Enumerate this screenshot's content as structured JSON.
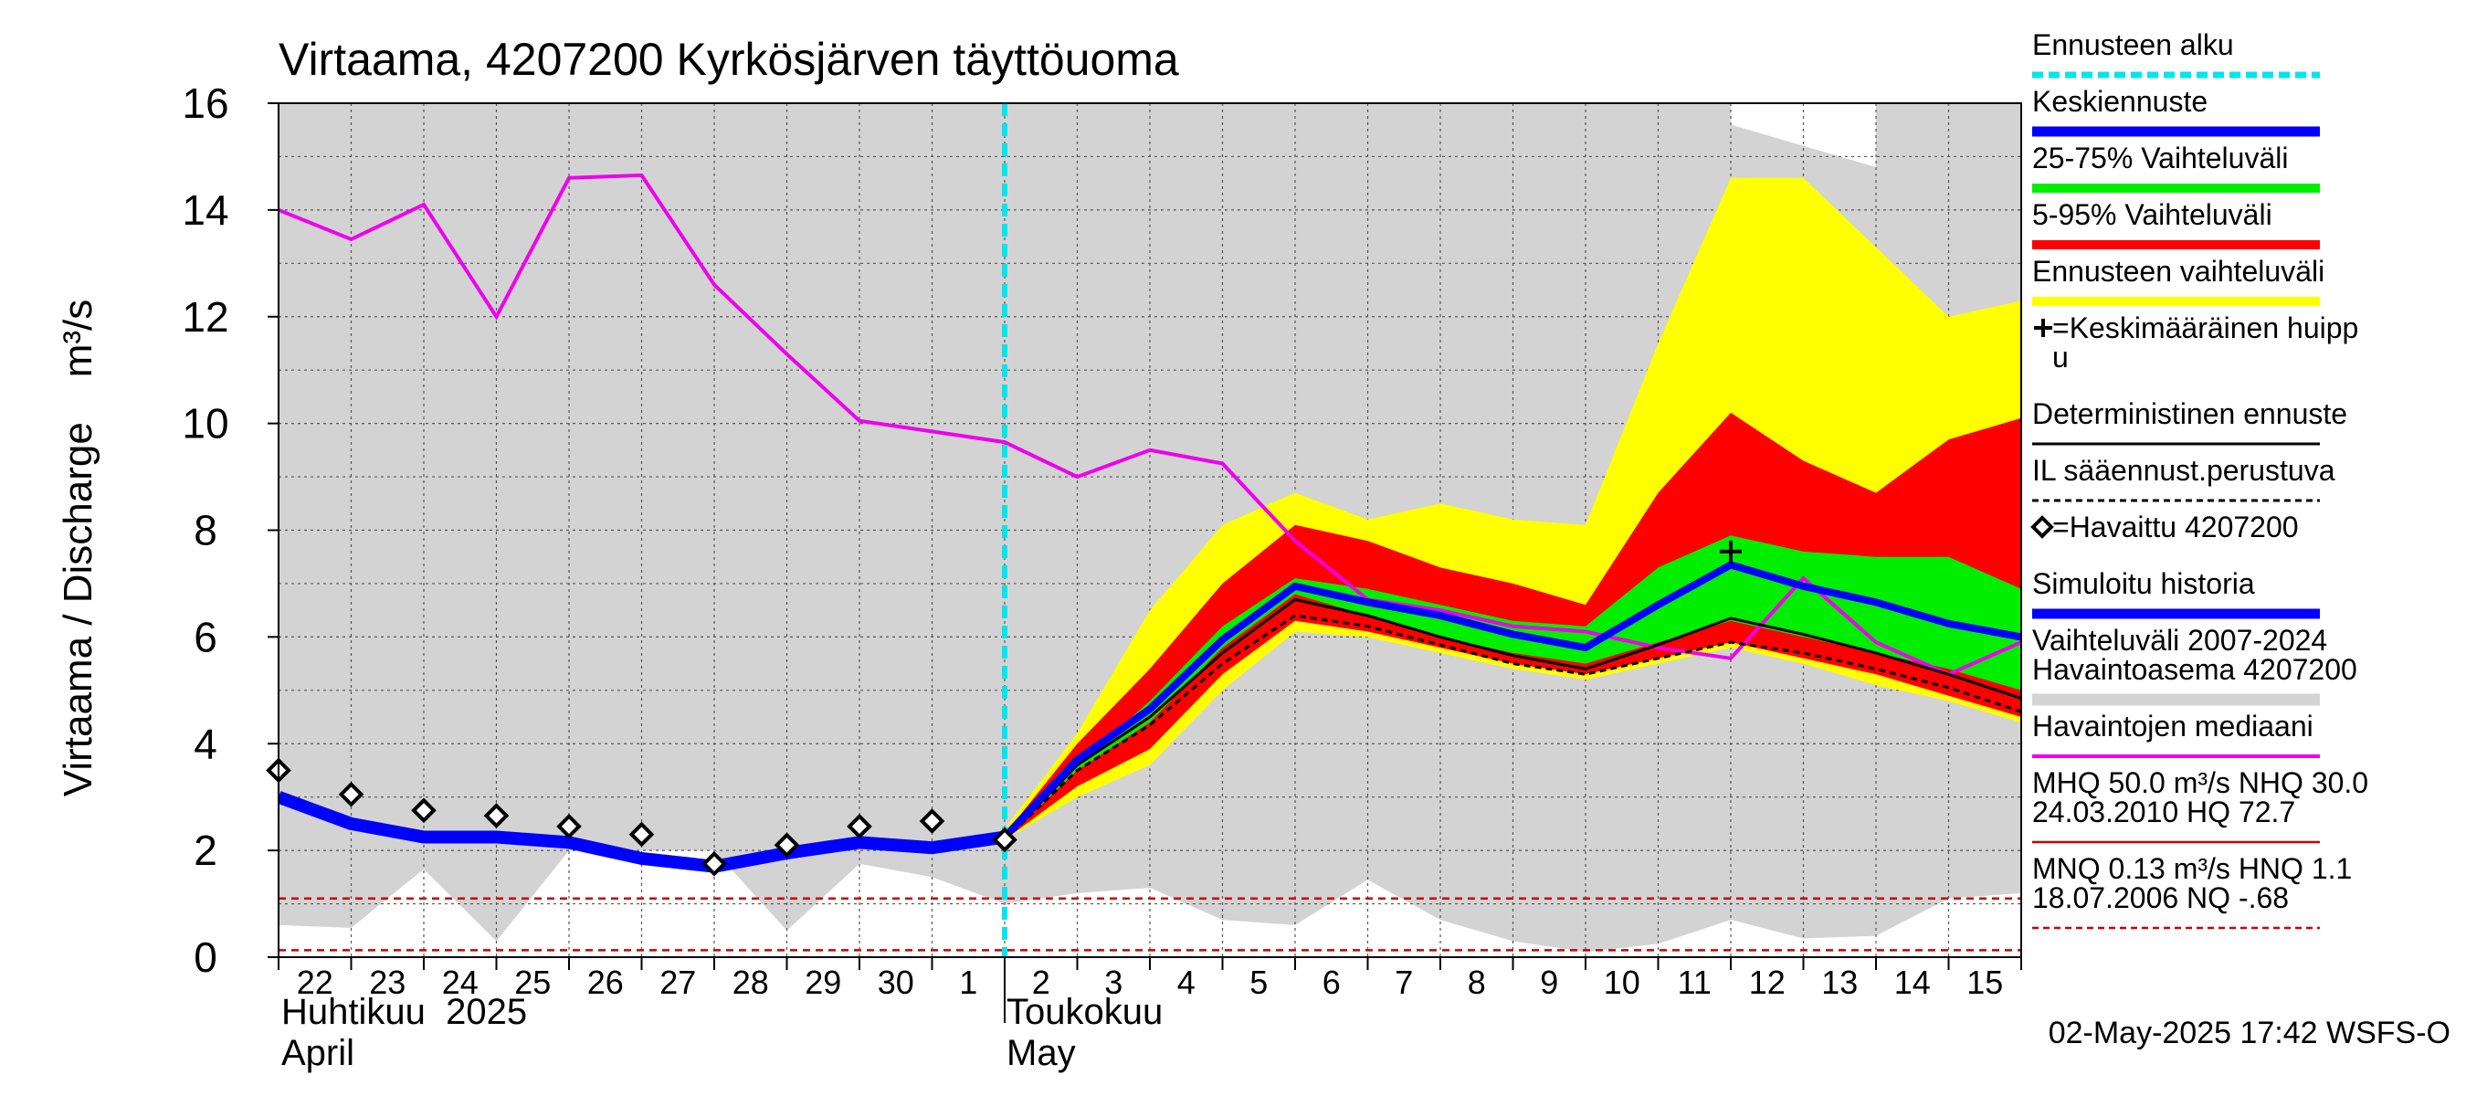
{
  "chart_data": {
    "type": "line",
    "title": "Virtaama, 4207200 Kyrkösjärven täyttöuoma",
    "ylabel": "Virtaama / Discharge    m³/s",
    "ylim": [
      0,
      16
    ],
    "yticks": [
      "0",
      "2",
      "4",
      "6",
      "8",
      "10",
      "12",
      "14",
      "16"
    ],
    "x_days": [
      0,
      24
    ],
    "forecast_start_day": 10,
    "day_labels": [
      "22",
      "23",
      "24",
      "25",
      "26",
      "27",
      "28",
      "29",
      "30",
      "1",
      "2",
      "3",
      "4",
      "5",
      "6",
      "7",
      "8",
      "9",
      "10",
      "11",
      "12",
      "13",
      "14",
      "15"
    ],
    "month_labels": {
      "april_fi": "Huhtikuu  2025",
      "april_en": "April",
      "may_fi": "Toukokuu",
      "may_en": "May"
    },
    "timestamp": "02-May-2025 17:42 WSFS-O",
    "colors": {
      "forecast_start": "#00e5ee",
      "mean_forecast": "#0000ff",
      "p25_75": "#00ee00",
      "p5_95": "#ff0000",
      "forecast_range": "#ffff00",
      "historical_range": "#d3d3d3",
      "median": "#ee00ee",
      "deterministic": "#000000",
      "mhq": "#cc0000",
      "mnq": "#cc0000"
    },
    "series": {
      "historical_range": {
        "upper": [
          [
            0,
            16
          ],
          [
            20,
            16
          ],
          [
            20,
            15.6
          ],
          [
            22,
            14.8
          ],
          [
            22,
            16
          ],
          [
            24,
            16
          ]
        ],
        "lower": [
          [
            0,
            0.6
          ],
          [
            1,
            0.55
          ],
          [
            2,
            1.65
          ],
          [
            3,
            0.3
          ],
          [
            4,
            2.0
          ],
          [
            5,
            2.0
          ],
          [
            6,
            2.0
          ],
          [
            7,
            0.5
          ],
          [
            8,
            1.75
          ],
          [
            9,
            1.5
          ],
          [
            10,
            1.0
          ],
          [
            11,
            1.2
          ],
          [
            12,
            1.3
          ],
          [
            13,
            0.7
          ],
          [
            14,
            0.6
          ],
          [
            15,
            1.45
          ],
          [
            16,
            0.7
          ],
          [
            17,
            0.3
          ],
          [
            18,
            0.1
          ],
          [
            19,
            0.25
          ],
          [
            20,
            0.7
          ],
          [
            21,
            0.35
          ],
          [
            22,
            0.4
          ],
          [
            23,
            1.1
          ],
          [
            24,
            1.2
          ]
        ]
      },
      "forecast_range": {
        "upper": [
          [
            10,
            2.4
          ],
          [
            11,
            4.2
          ],
          [
            12,
            6.5
          ],
          [
            13,
            8.1
          ],
          [
            14,
            8.7
          ],
          [
            15,
            8.2
          ],
          [
            16,
            8.5
          ],
          [
            17,
            8.2
          ],
          [
            18,
            8.1
          ],
          [
            19,
            11.5
          ],
          [
            20,
            14.6
          ],
          [
            21,
            14.6
          ],
          [
            22,
            13.3
          ],
          [
            23,
            12.0
          ],
          [
            24,
            12.3
          ]
        ],
        "lower": [
          [
            10,
            2.2
          ],
          [
            11,
            3.0
          ],
          [
            12,
            3.6
          ],
          [
            13,
            5.0
          ],
          [
            14,
            6.1
          ],
          [
            15,
            6.0
          ],
          [
            16,
            5.7
          ],
          [
            17,
            5.4
          ],
          [
            18,
            5.2
          ],
          [
            19,
            5.5
          ],
          [
            20,
            5.8
          ],
          [
            21,
            5.5
          ],
          [
            22,
            5.1
          ],
          [
            23,
            4.8
          ],
          [
            24,
            4.4
          ]
        ]
      },
      "p5_95": {
        "upper": [
          [
            10,
            2.3
          ],
          [
            11,
            4.0
          ],
          [
            12,
            5.4
          ],
          [
            13,
            7.0
          ],
          [
            14,
            8.1
          ],
          [
            15,
            7.8
          ],
          [
            16,
            7.3
          ],
          [
            17,
            7.0
          ],
          [
            18,
            6.6
          ],
          [
            19,
            8.7
          ],
          [
            20,
            10.2
          ],
          [
            21,
            9.3
          ],
          [
            22,
            8.7
          ],
          [
            23,
            9.7
          ],
          [
            24,
            10.1
          ]
        ],
        "lower": [
          [
            10,
            2.2
          ],
          [
            11,
            3.2
          ],
          [
            12,
            3.9
          ],
          [
            13,
            5.3
          ],
          [
            14,
            6.3
          ],
          [
            15,
            6.1
          ],
          [
            16,
            5.8
          ],
          [
            17,
            5.5
          ],
          [
            18,
            5.3
          ],
          [
            19,
            5.6
          ],
          [
            20,
            5.9
          ],
          [
            21,
            5.6
          ],
          [
            22,
            5.3
          ],
          [
            23,
            4.9
          ],
          [
            24,
            4.5
          ]
        ]
      },
      "p25_75": {
        "upper": [
          [
            10,
            2.3
          ],
          [
            11,
            3.6
          ],
          [
            12,
            4.8
          ],
          [
            13,
            6.2
          ],
          [
            14,
            7.1
          ],
          [
            15,
            6.9
          ],
          [
            16,
            6.6
          ],
          [
            17,
            6.3
          ],
          [
            18,
            6.2
          ],
          [
            19,
            7.3
          ],
          [
            20,
            7.9
          ],
          [
            21,
            7.6
          ],
          [
            22,
            7.5
          ],
          [
            23,
            7.5
          ],
          [
            24,
            6.9
          ]
        ],
        "lower": [
          [
            10,
            2.2
          ],
          [
            11,
            3.5
          ],
          [
            12,
            4.4
          ],
          [
            13,
            5.8
          ],
          [
            14,
            6.8
          ],
          [
            15,
            6.4
          ],
          [
            16,
            6.0
          ],
          [
            17,
            5.7
          ],
          [
            18,
            5.5
          ],
          [
            19,
            5.9
          ],
          [
            20,
            6.3
          ],
          [
            21,
            6.0
          ],
          [
            22,
            5.7
          ],
          [
            23,
            5.4
          ],
          [
            24,
            5.0
          ]
        ]
      },
      "median": [
        [
          0,
          14.0
        ],
        [
          1,
          13.45
        ],
        [
          2,
          14.1
        ],
        [
          3,
          12.0
        ],
        [
          4,
          14.6
        ],
        [
          5,
          14.65
        ],
        [
          6,
          12.6
        ],
        [
          7,
          11.3
        ],
        [
          8,
          10.05
        ],
        [
          9,
          9.85
        ],
        [
          10,
          9.65
        ],
        [
          11,
          9.0
        ],
        [
          12,
          9.5
        ],
        [
          13,
          9.25
        ],
        [
          14,
          7.8
        ],
        [
          15,
          6.7
        ],
        [
          16,
          6.5
        ],
        [
          17,
          6.2
        ],
        [
          18,
          6.1
        ],
        [
          19,
          5.8
        ],
        [
          20,
          5.6
        ],
        [
          21,
          7.1
        ],
        [
          22,
          5.9
        ],
        [
          23,
          5.3
        ],
        [
          24,
          5.9
        ]
      ],
      "simulated_history": [
        [
          0,
          3.0
        ],
        [
          1,
          2.5
        ],
        [
          2,
          2.25
        ],
        [
          3,
          2.25
        ],
        [
          4,
          2.15
        ],
        [
          5,
          1.85
        ],
        [
          6,
          1.7
        ],
        [
          7,
          1.95
        ],
        [
          8,
          2.15
        ],
        [
          9,
          2.05
        ],
        [
          10,
          2.25
        ]
      ],
      "mean_forecast": [
        [
          10,
          2.25
        ],
        [
          11,
          3.7
        ],
        [
          12,
          4.65
        ],
        [
          13,
          5.95
        ],
        [
          14,
          6.95
        ],
        [
          15,
          6.65
        ],
        [
          16,
          6.4
        ],
        [
          17,
          6.05
        ],
        [
          18,
          5.8
        ],
        [
          19,
          6.6
        ],
        [
          20,
          7.35
        ],
        [
          21,
          6.95
        ],
        [
          22,
          6.65
        ],
        [
          23,
          6.25
        ],
        [
          24,
          6.0
        ]
      ],
      "deterministic": [
        [
          10,
          2.2
        ],
        [
          11,
          3.6
        ],
        [
          12,
          4.5
        ],
        [
          13,
          5.7
        ],
        [
          14,
          6.7
        ],
        [
          15,
          6.4
        ],
        [
          16,
          6.0
        ],
        [
          17,
          5.65
        ],
        [
          18,
          5.4
        ],
        [
          19,
          5.85
        ],
        [
          20,
          6.35
        ],
        [
          21,
          6.05
        ],
        [
          22,
          5.7
        ],
        [
          23,
          5.3
        ],
        [
          24,
          4.85
        ]
      ],
      "il_forecast": [
        [
          10,
          2.2
        ],
        [
          11,
          3.5
        ],
        [
          12,
          4.35
        ],
        [
          13,
          5.5
        ],
        [
          14,
          6.4
        ],
        [
          15,
          6.2
        ],
        [
          16,
          5.85
        ],
        [
          17,
          5.5
        ],
        [
          18,
          5.3
        ],
        [
          19,
          5.6
        ],
        [
          20,
          5.9
        ],
        [
          21,
          5.7
        ],
        [
          22,
          5.4
        ],
        [
          23,
          5.05
        ],
        [
          24,
          4.6
        ]
      ],
      "observed": [
        [
          0,
          3.5
        ],
        [
          1,
          3.05
        ],
        [
          2,
          2.75
        ],
        [
          3,
          2.65
        ],
        [
          4,
          2.45
        ],
        [
          5,
          2.3
        ],
        [
          6,
          1.75
        ],
        [
          7,
          2.1
        ],
        [
          8,
          2.45
        ],
        [
          9,
          2.55
        ],
        [
          10,
          2.2
        ]
      ],
      "mean_peak": [
        [
          20,
          7.6
        ]
      ],
      "mhq_level": 1.1,
      "mnq_level": 0.13
    },
    "legend": [
      {
        "key": "forecast_start",
        "lines": [
          "Ennusteen alku"
        ]
      },
      {
        "key": "mean_forecast",
        "lines": [
          "Keskiennuste"
        ]
      },
      {
        "key": "p25_75",
        "lines": [
          "25-75% Vaihteluväli"
        ]
      },
      {
        "key": "p5_95",
        "lines": [
          "5-95% Vaihteluväli"
        ]
      },
      {
        "key": "forecast_range",
        "lines": [
          "Ennusteen vaihteluväli"
        ]
      },
      {
        "key": "mean_peak",
        "lines": [
          "=Keskimääräinen huipp",
          "u"
        ]
      },
      {
        "key": "deterministic",
        "lines": [
          "Deterministinen ennuste"
        ]
      },
      {
        "key": "il_forecast",
        "lines": [
          "IL sääennust.perustuva"
        ]
      },
      {
        "key": "observed",
        "lines": [
          "=Havaittu 4207200"
        ]
      },
      {
        "key": "simulated_history",
        "lines": [
          "Simuloitu historia"
        ]
      },
      {
        "key": "historical_range",
        "lines": [
          "Vaihteluväli 2007-2024",
          " Havaintoasema 4207200"
        ]
      },
      {
        "key": "median",
        "lines": [
          "Havaintojen mediaani"
        ]
      },
      {
        "key": "mhq",
        "lines": [
          "MHQ 50.0 m³/s NHQ 30.0",
          "24.03.2010 HQ 72.7"
        ]
      },
      {
        "key": "mnq",
        "lines": [
          "MNQ 0.13 m³/s HNQ  1.1",
          "18.07.2006 NQ -.68"
        ]
      }
    ]
  }
}
